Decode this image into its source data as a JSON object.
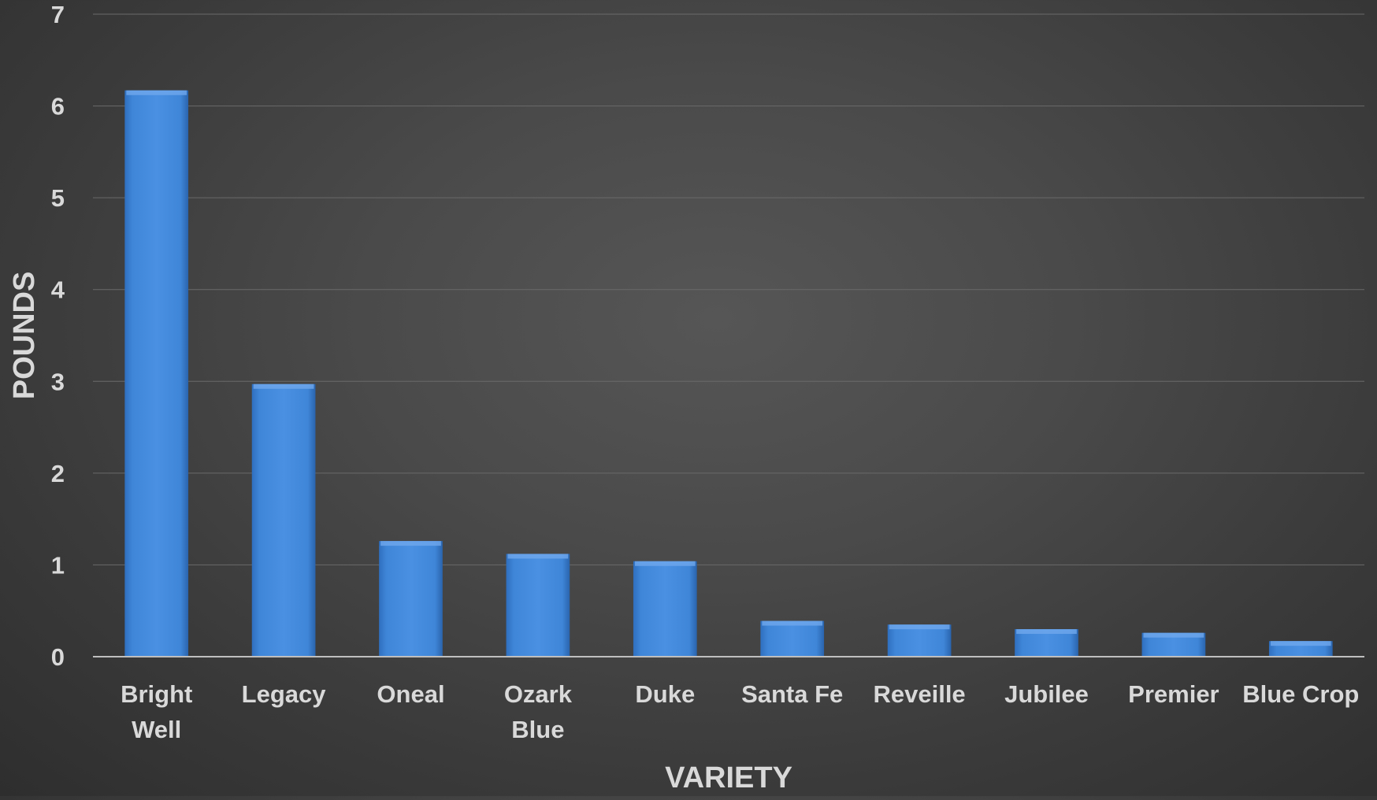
{
  "chart_data": {
    "type": "bar",
    "categories": [
      "Bright Well",
      "Legacy",
      "Oneal",
      "Ozark Blue",
      "Duke",
      "Santa Fe",
      "Reveille",
      "Jubilee",
      "Premier",
      "Blue Crop"
    ],
    "category_lines": [
      [
        "Bright",
        "Well"
      ],
      [
        "Legacy"
      ],
      [
        "Oneal"
      ],
      [
        "Ozark",
        "Blue"
      ],
      [
        "Duke"
      ],
      [
        "Santa Fe"
      ],
      [
        "Reveille"
      ],
      [
        "Jubilee"
      ],
      [
        "Premier"
      ],
      [
        "Blue Crop"
      ]
    ],
    "values": [
      6.17,
      2.97,
      1.26,
      1.12,
      1.04,
      0.39,
      0.35,
      0.3,
      0.26,
      0.17
    ],
    "title": "",
    "xlabel": "VARIETY",
    "ylabel": "POUNDS",
    "ylim": [
      0,
      7
    ],
    "yticks": [
      "0",
      "1",
      "2",
      "3",
      "4",
      "5",
      "6",
      "7"
    ],
    "grid": true,
    "legend": "none",
    "bar_color": "#3f86d8",
    "background_color": "#474747"
  }
}
